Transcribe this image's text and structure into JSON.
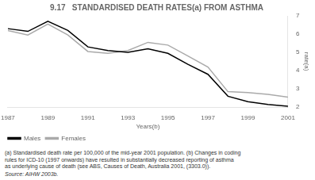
{
  "chart_data": {
    "type": "line",
    "title": "9.17   STANDARDISED DEATH RATES(a) FROM ASTHMA",
    "xlabel": "Years(b)",
    "ylabel": "rate(a)",
    "x": [
      1987,
      1988,
      1989,
      1990,
      1991,
      1992,
      1993,
      1994,
      1995,
      1996,
      1997,
      1998,
      1999,
      2000,
      2001
    ],
    "series": [
      {
        "name": "Males",
        "color": "#000000",
        "values": [
          6.3,
          6.15,
          6.7,
          6.2,
          5.3,
          5.1,
          5.0,
          5.2,
          4.95,
          4.35,
          3.8,
          2.6,
          2.3,
          2.15,
          2.05
        ]
      },
      {
        "name": "Females",
        "color": "#aaaaaa",
        "values": [
          6.2,
          5.95,
          6.55,
          5.95,
          5.05,
          4.95,
          5.1,
          5.55,
          5.4,
          4.8,
          4.2,
          2.85,
          2.8,
          2.7,
          2.55
        ]
      }
    ],
    "xlim": [
      1987,
      2001
    ],
    "xticks": [
      1987,
      1989,
      1991,
      1993,
      1995,
      1997,
      1999,
      2001
    ],
    "ylim": [
      2,
      7
    ],
    "yticks": [
      2,
      3,
      4,
      5,
      6,
      7
    ],
    "grid": false,
    "legend": "lower left",
    "annotations": [
      "(a) Standardised death rate per 100,000 of the mid-year 2001 population.  (b) Changes in coding",
      "rules for ICD-10 (1997 onwards) have resulted in substantially decreased reporting of asthma",
      "as underlying cause of death (see ABS, Causes of Death, Australia 2001, (3303.0))."
    ],
    "source": "Source:  AIHW 2003b."
  }
}
